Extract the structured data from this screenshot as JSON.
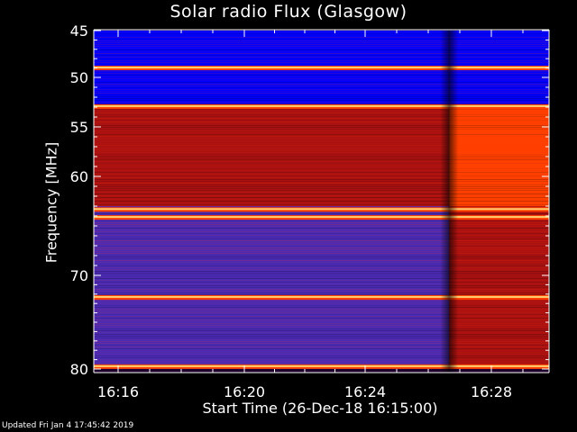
{
  "chart_data": {
    "type": "heatmap",
    "title": "Solar radio Flux (Glasgow)",
    "xlabel": "Start Time (26-Dec-18 16:15:00)",
    "ylabel": "Frequency [MHz]",
    "x_ticks": [
      "16:16",
      "16:20",
      "16:24",
      "16:28"
    ],
    "y_ticks": [
      "45",
      "50",
      "55",
      "60",
      "70",
      "80"
    ],
    "xlim": [
      "16:15:00",
      "16:30:00"
    ],
    "ylim": [
      45,
      80
    ],
    "y_axis_reversed": true,
    "grid": false,
    "colormap": [
      "#0000ff",
      "#4b2bb4",
      "#aa1111",
      "#ff4000",
      "#ffd070"
    ],
    "regions": [
      {
        "f_start": 45.0,
        "f_end": 48.9,
        "level": "blue"
      },
      {
        "f_start": 49.2,
        "f_end": 52.7,
        "level": "blue"
      },
      {
        "f_start": 53.1,
        "f_end": 63.0,
        "level": "red"
      },
      {
        "f_start": 63.0,
        "f_end": 72.2,
        "level": "purple"
      },
      {
        "f_start": 72.5,
        "f_end": 80.0,
        "level": "purple"
      }
    ],
    "bright_lines_mhz": [
      48.95,
      52.9,
      63.3,
      64.1,
      72.3,
      79.7
    ],
    "transition_time": "16:26:40"
  },
  "footer": {
    "updated": "Updated Fri Jan  4 17:45:42 2019"
  },
  "colors": {
    "background": "#000000",
    "axis": "#ffffff"
  }
}
